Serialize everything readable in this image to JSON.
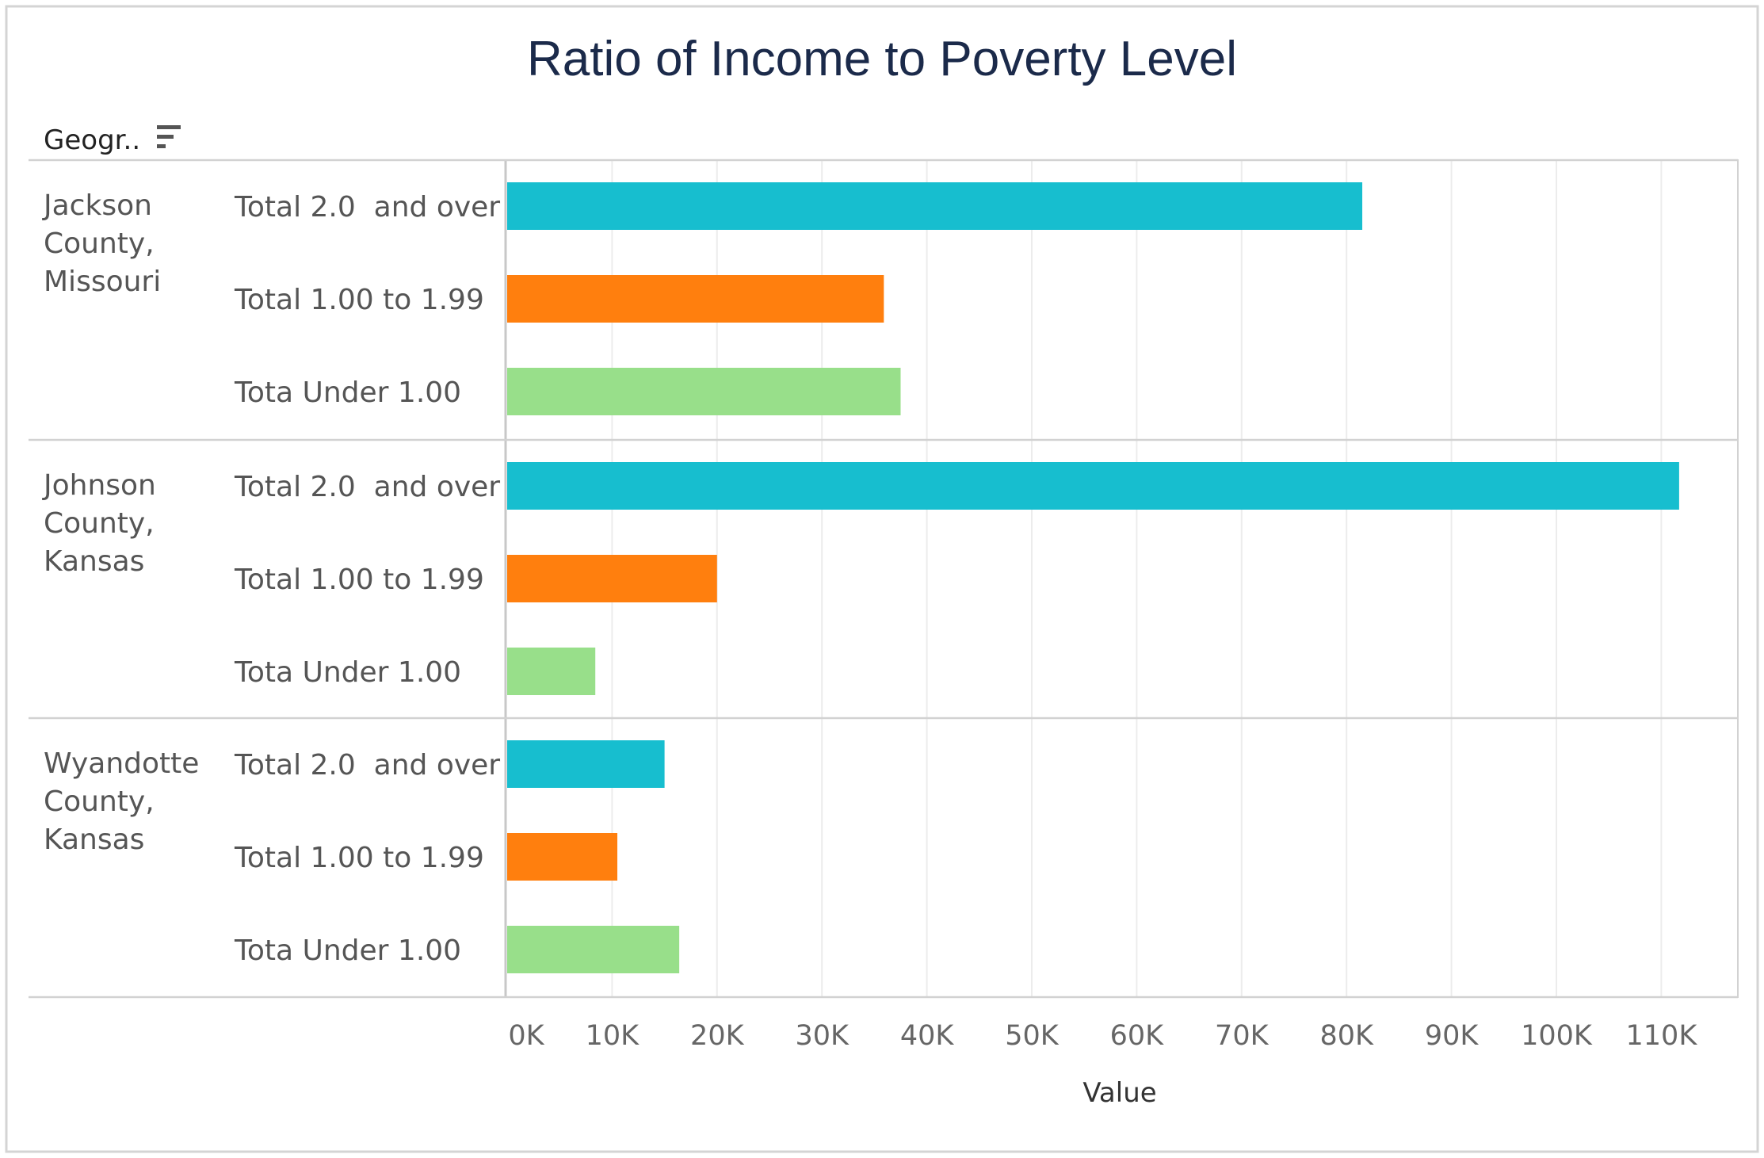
{
  "chart_data": {
    "type": "bar",
    "orientation": "horizontal",
    "title": "Ratio of Income to Poverty Level",
    "row_header": "Geogr..",
    "xlabel": "Value",
    "xlim": [
      0,
      113000
    ],
    "xticks": [
      0,
      10000,
      20000,
      30000,
      40000,
      50000,
      60000,
      70000,
      80000,
      90000,
      100000,
      110000
    ],
    "xtick_labels": [
      "0K",
      "10K",
      "20K",
      "30K",
      "40K",
      "50K",
      "60K",
      "70K",
      "80K",
      "90K",
      "100K",
      "110K"
    ],
    "grid": true,
    "colors": {
      "Total 2.0  and over": "#17becf",
      "Total 1.00 to 1.99": "#ff7f0e",
      "Tota Under 1.00": "#98df8a"
    },
    "groups": [
      {
        "name": "Jackson County, Missouri",
        "name_lines": [
          "Jackson",
          "County,",
          "Missouri"
        ],
        "bars": [
          {
            "category": "Total 2.0  and over",
            "value": 81500
          },
          {
            "category": "Total 1.00 to 1.99",
            "value": 35900
          },
          {
            "category": "Tota Under 1.00",
            "value": 37500
          }
        ]
      },
      {
        "name": "Johnson County, Kansas",
        "name_lines": [
          "Johnson",
          "County,",
          "Kansas"
        ],
        "bars": [
          {
            "category": "Total 2.0  and over",
            "value": 111700
          },
          {
            "category": "Total 1.00 to 1.99",
            "value": 20000
          },
          {
            "category": "Tota Under 1.00",
            "value": 8400
          }
        ]
      },
      {
        "name": "Wyandotte County, Kansas",
        "name_lines": [
          "Wyandotte",
          "County,",
          "Kansas"
        ],
        "bars": [
          {
            "category": "Total 2.0  and over",
            "value": 15000
          },
          {
            "category": "Total 1.00 to 1.99",
            "value": 10500
          },
          {
            "category": "Tota Under 1.00",
            "value": 16400
          }
        ]
      }
    ]
  },
  "sort_icon": "sort-descending-icon"
}
